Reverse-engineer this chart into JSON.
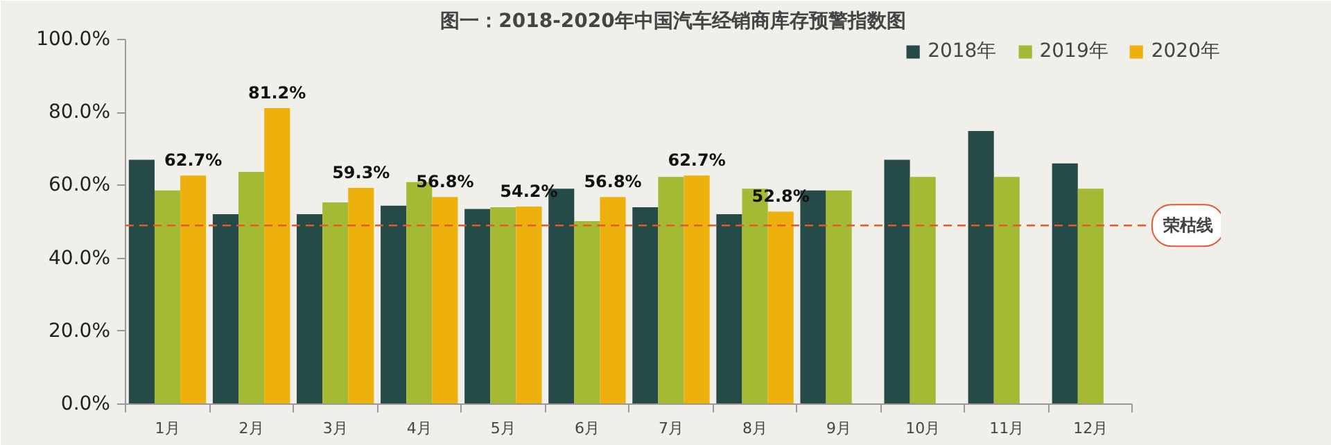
{
  "chart_data": {
    "type": "bar",
    "title": "图一：2018-2020年中国汽车经销商库存预警指数图",
    "categories": [
      "1月",
      "2月",
      "3月",
      "4月",
      "5月",
      "6月",
      "7月",
      "8月",
      "9月",
      "10月",
      "11月",
      "12月"
    ],
    "series": [
      {
        "name": "2018年",
        "color": "#264a47",
        "values": [
          67.0,
          52.1,
          52.1,
          54.4,
          53.5,
          59.1,
          54.0,
          52.1,
          58.6,
          67.0,
          74.9,
          66.0
        ]
      },
      {
        "name": "2019年",
        "color": "#a4b934",
        "values": [
          58.6,
          63.7,
          55.3,
          60.9,
          54.0,
          50.2,
          62.3,
          59.1,
          58.6,
          62.3,
          62.3,
          59.1
        ]
      },
      {
        "name": "2020年",
        "color": "#eeb00d",
        "values": [
          62.7,
          81.2,
          59.3,
          56.8,
          54.2,
          56.8,
          62.7,
          52.8,
          null,
          null,
          null,
          null
        ],
        "value_labels": [
          "62.7%",
          "81.2%",
          "59.3%",
          "56.8%",
          "54.2%",
          "56.8%",
          "62.7%",
          "52.8%",
          null,
          null,
          null,
          null
        ]
      }
    ],
    "ylim": [
      0,
      100
    ],
    "yticks": [
      {
        "value": 0,
        "label": "0.0%"
      },
      {
        "value": 20,
        "label": "20.0%"
      },
      {
        "value": 40,
        "label": "40.0%"
      },
      {
        "value": 60,
        "label": "60.0%"
      },
      {
        "value": 80,
        "label": "80.0%"
      },
      {
        "value": 100,
        "label": "100.0%"
      }
    ],
    "ref_lines": [
      {
        "axis": "y",
        "value": 49,
        "label": "荣枯线",
        "color": "#e05a2b",
        "line_style": "dashed"
      }
    ],
    "grid": false,
    "legend": "top right"
  }
}
